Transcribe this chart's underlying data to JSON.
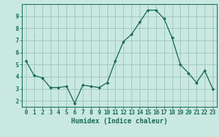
{
  "x": [
    0,
    1,
    2,
    3,
    4,
    5,
    6,
    7,
    8,
    9,
    10,
    11,
    12,
    13,
    14,
    15,
    16,
    17,
    18,
    19,
    20,
    21,
    22,
    23
  ],
  "y": [
    5.3,
    4.1,
    3.9,
    3.1,
    3.1,
    3.2,
    1.8,
    3.3,
    3.2,
    3.1,
    3.5,
    5.3,
    6.9,
    7.5,
    8.5,
    9.5,
    9.5,
    8.8,
    7.2,
    5.0,
    4.3,
    3.5,
    4.5,
    3.0
  ],
  "xlabel": "Humidex (Indice chaleur)",
  "ylim": [
    1.5,
    10.0
  ],
  "xlim": [
    -0.5,
    23.5
  ],
  "line_color": "#1a6b5a",
  "marker": "D",
  "marker_size": 2,
  "bg_color": "#c8e8e0",
  "grid_color": "#a0c8c0",
  "axis_color": "#1a6b5a",
  "label_fontsize": 7,
  "tick_fontsize": 6,
  "yticks": [
    2,
    3,
    4,
    5,
    6,
    7,
    8,
    9
  ],
  "xticks": [
    0,
    1,
    2,
    3,
    4,
    5,
    6,
    7,
    8,
    9,
    10,
    11,
    12,
    13,
    14,
    15,
    16,
    17,
    18,
    19,
    20,
    21,
    22,
    23
  ]
}
